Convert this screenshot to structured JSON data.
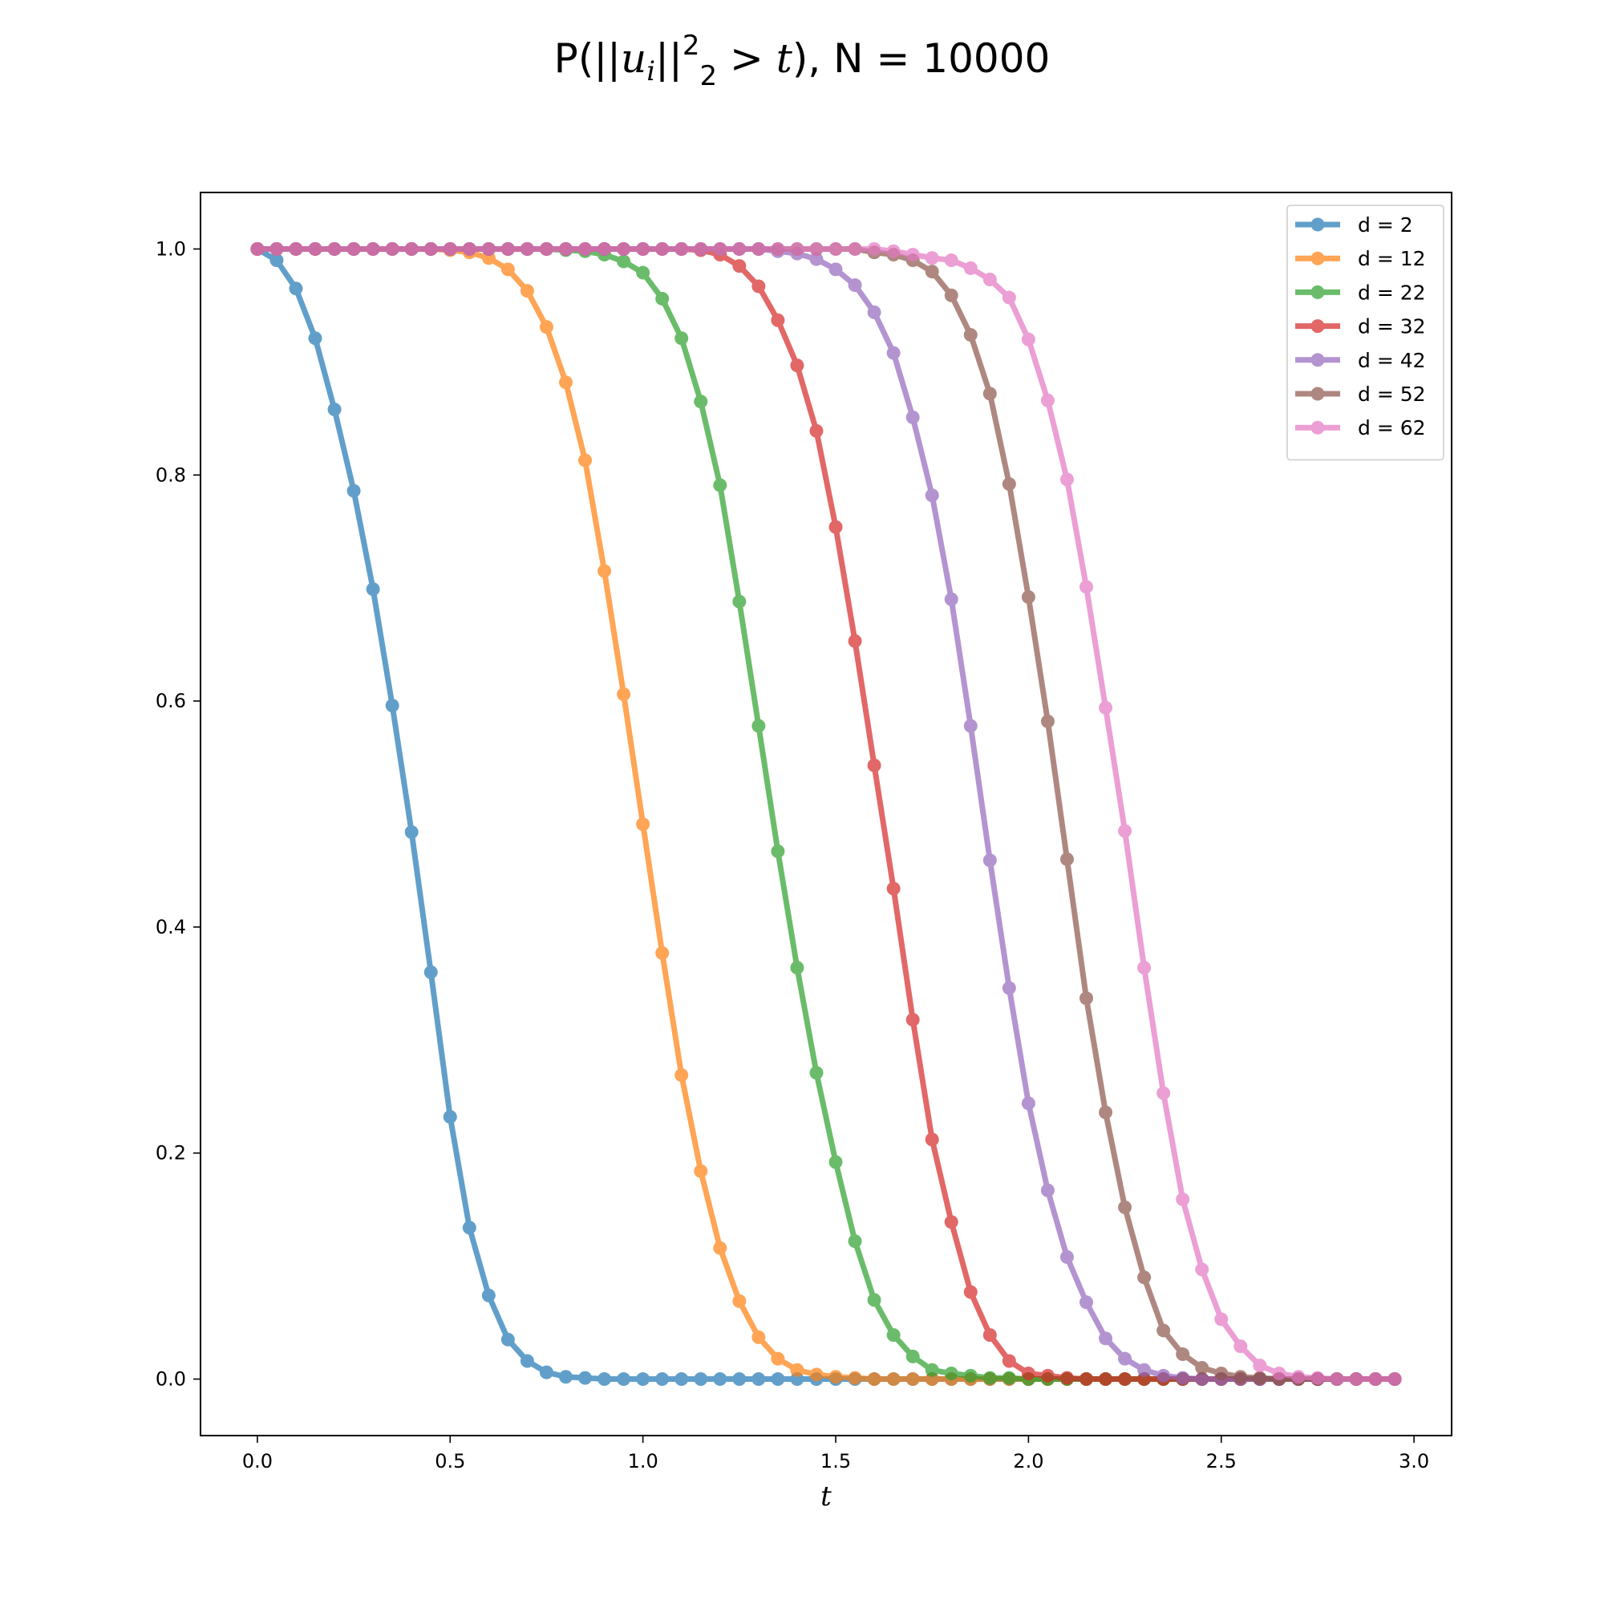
{
  "chart_data": {
    "type": "line",
    "title": {
      "prefix": "P(||",
      "u": "u",
      "i": "i",
      "mid": "||",
      "sup": "2",
      "sub": "2",
      "gt": " > ",
      "t": "t",
      "suffix": "), N = 10000"
    },
    "xlabel": "t",
    "ylabel": "",
    "xlim": [
      -0.1475,
      3.0975
    ],
    "ylim": [
      -0.05,
      1.05
    ],
    "xticks": [
      0.0,
      0.5,
      1.0,
      1.5,
      2.0,
      2.5,
      3.0
    ],
    "xtick_labels": [
      "0.0",
      "0.5",
      "1.0",
      "1.5",
      "2.0",
      "2.5",
      "3.0"
    ],
    "yticks": [
      0.0,
      0.2,
      0.4,
      0.6,
      0.8,
      1.0
    ],
    "ytick_labels": [
      "0.0",
      "0.2",
      "0.4",
      "0.6",
      "0.8",
      "1.0"
    ],
    "grid": false,
    "legend_position": "top-right",
    "x": [
      0.0,
      0.05,
      0.1,
      0.15,
      0.2,
      0.25,
      0.3,
      0.35,
      0.4,
      0.45,
      0.5,
      0.55,
      0.6,
      0.65,
      0.7,
      0.75,
      0.8,
      0.85,
      0.9,
      0.95,
      1.0,
      1.05,
      1.1,
      1.15,
      1.2,
      1.25,
      1.3,
      1.35,
      1.4,
      1.45,
      1.5,
      1.55,
      1.6,
      1.65,
      1.7,
      1.75,
      1.8,
      1.85,
      1.9,
      1.95,
      2.0,
      2.05,
      2.1,
      2.15,
      2.2,
      2.25,
      2.3,
      2.35,
      2.4,
      2.45,
      2.5,
      2.55,
      2.6,
      2.65,
      2.7,
      2.75,
      2.8,
      2.85,
      2.9,
      2.95
    ],
    "series": [
      {
        "name": "d = 2",
        "color": "#1f77b4",
        "values": [
          1.0,
          0.99,
          0.965,
          0.921,
          0.858,
          0.786,
          0.699,
          0.596,
          0.484,
          0.36,
          0.232,
          0.134,
          0.074,
          0.035,
          0.016,
          0.006,
          0.002,
          0.001,
          0,
          0,
          0,
          0,
          0,
          0,
          0,
          0,
          0,
          0,
          0,
          0,
          0,
          0,
          0,
          0,
          0,
          0,
          0,
          0,
          0,
          0,
          0,
          0,
          0,
          0,
          0,
          0,
          0,
          0,
          0,
          0,
          0,
          0,
          0,
          0,
          0,
          0,
          0,
          0,
          0,
          0
        ]
      },
      {
        "name": "d = 12",
        "color": "#ff7f0e",
        "values": [
          1.0,
          1.0,
          1.0,
          1.0,
          1.0,
          1.0,
          1.0,
          1.0,
          1.0,
          1.0,
          0.999,
          0.997,
          0.992,
          0.982,
          0.963,
          0.931,
          0.882,
          0.813,
          0.715,
          0.606,
          0.491,
          0.377,
          0.269,
          0.184,
          0.116,
          0.069,
          0.037,
          0.018,
          0.008,
          0.004,
          0.002,
          0.001,
          0,
          0,
          0,
          0,
          0,
          0,
          0,
          0,
          0,
          0,
          0,
          0,
          0,
          0,
          0,
          0,
          0,
          0,
          0,
          0,
          0,
          0,
          0,
          0,
          0,
          0,
          0,
          0
        ]
      },
      {
        "name": "d = 22",
        "color": "#2ca02c",
        "values": [
          1.0,
          1.0,
          1.0,
          1.0,
          1.0,
          1.0,
          1.0,
          1.0,
          1.0,
          1.0,
          1.0,
          1.0,
          1.0,
          1.0,
          1.0,
          1.0,
          0.999,
          0.998,
          0.995,
          0.989,
          0.979,
          0.956,
          0.921,
          0.865,
          0.791,
          0.688,
          0.578,
          0.467,
          0.364,
          0.271,
          0.192,
          0.122,
          0.07,
          0.039,
          0.02,
          0.008,
          0.005,
          0.003,
          0.001,
          0.001,
          0,
          0,
          0,
          0,
          0,
          0,
          0,
          0,
          0,
          0,
          0,
          0,
          0,
          0,
          0,
          0,
          0,
          0,
          0,
          0
        ]
      },
      {
        "name": "d = 32",
        "color": "#d62728",
        "values": [
          1.0,
          1.0,
          1.0,
          1.0,
          1.0,
          1.0,
          1.0,
          1.0,
          1.0,
          1.0,
          1.0,
          1.0,
          1.0,
          1.0,
          1.0,
          1.0,
          1.0,
          1.0,
          1.0,
          1.0,
          1.0,
          1.0,
          1.0,
          0.999,
          0.995,
          0.985,
          0.967,
          0.937,
          0.897,
          0.839,
          0.754,
          0.653,
          0.543,
          0.434,
          0.318,
          0.212,
          0.139,
          0.077,
          0.039,
          0.016,
          0.005,
          0.003,
          0.001,
          0,
          0,
          0,
          0,
          0,
          0,
          0,
          0,
          0,
          0,
          0,
          0,
          0,
          0,
          0,
          0,
          0
        ]
      },
      {
        "name": "d = 42",
        "color": "#9467bd",
        "values": [
          1.0,
          1.0,
          1.0,
          1.0,
          1.0,
          1.0,
          1.0,
          1.0,
          1.0,
          1.0,
          1.0,
          1.0,
          1.0,
          1.0,
          1.0,
          1.0,
          1.0,
          1.0,
          1.0,
          1.0,
          1.0,
          1.0,
          1.0,
          1.0,
          1.0,
          1.0,
          1.0,
          0.998,
          0.996,
          0.991,
          0.982,
          0.968,
          0.944,
          0.908,
          0.851,
          0.782,
          0.69,
          0.578,
          0.459,
          0.346,
          0.244,
          0.167,
          0.108,
          0.068,
          0.036,
          0.018,
          0.008,
          0.003,
          0.001,
          0,
          0,
          0,
          0,
          0,
          0,
          0,
          0,
          0,
          0,
          0
        ]
      },
      {
        "name": "d = 52",
        "color": "#8c564b",
        "values": [
          1.0,
          1.0,
          1.0,
          1.0,
          1.0,
          1.0,
          1.0,
          1.0,
          1.0,
          1.0,
          1.0,
          1.0,
          1.0,
          1.0,
          1.0,
          1.0,
          1.0,
          1.0,
          1.0,
          1.0,
          1.0,
          1.0,
          1.0,
          1.0,
          1.0,
          1.0,
          1.0,
          1.0,
          1.0,
          1.0,
          1.0,
          1.0,
          0.997,
          0.995,
          0.99,
          0.98,
          0.959,
          0.924,
          0.872,
          0.792,
          0.692,
          0.582,
          0.46,
          0.337,
          0.236,
          0.152,
          0.09,
          0.043,
          0.022,
          0.01,
          0.005,
          0.002,
          0.001,
          0,
          0,
          0,
          0,
          0,
          0,
          0
        ]
      },
      {
        "name": "d = 62",
        "color": "#e377c2",
        "values": [
          1.0,
          1.0,
          1.0,
          1.0,
          1.0,
          1.0,
          1.0,
          1.0,
          1.0,
          1.0,
          1.0,
          1.0,
          1.0,
          1.0,
          1.0,
          1.0,
          1.0,
          1.0,
          1.0,
          1.0,
          1.0,
          1.0,
          1.0,
          1.0,
          1.0,
          1.0,
          1.0,
          1.0,
          1.0,
          1.0,
          1.0,
          1.0,
          1.0,
          0.998,
          0.995,
          0.992,
          0.99,
          0.983,
          0.973,
          0.957,
          0.92,
          0.866,
          0.796,
          0.701,
          0.594,
          0.485,
          0.364,
          0.253,
          0.159,
          0.097,
          0.053,
          0.029,
          0.012,
          0.005,
          0.002,
          0.001,
          0,
          0,
          0,
          0
        ]
      }
    ]
  }
}
